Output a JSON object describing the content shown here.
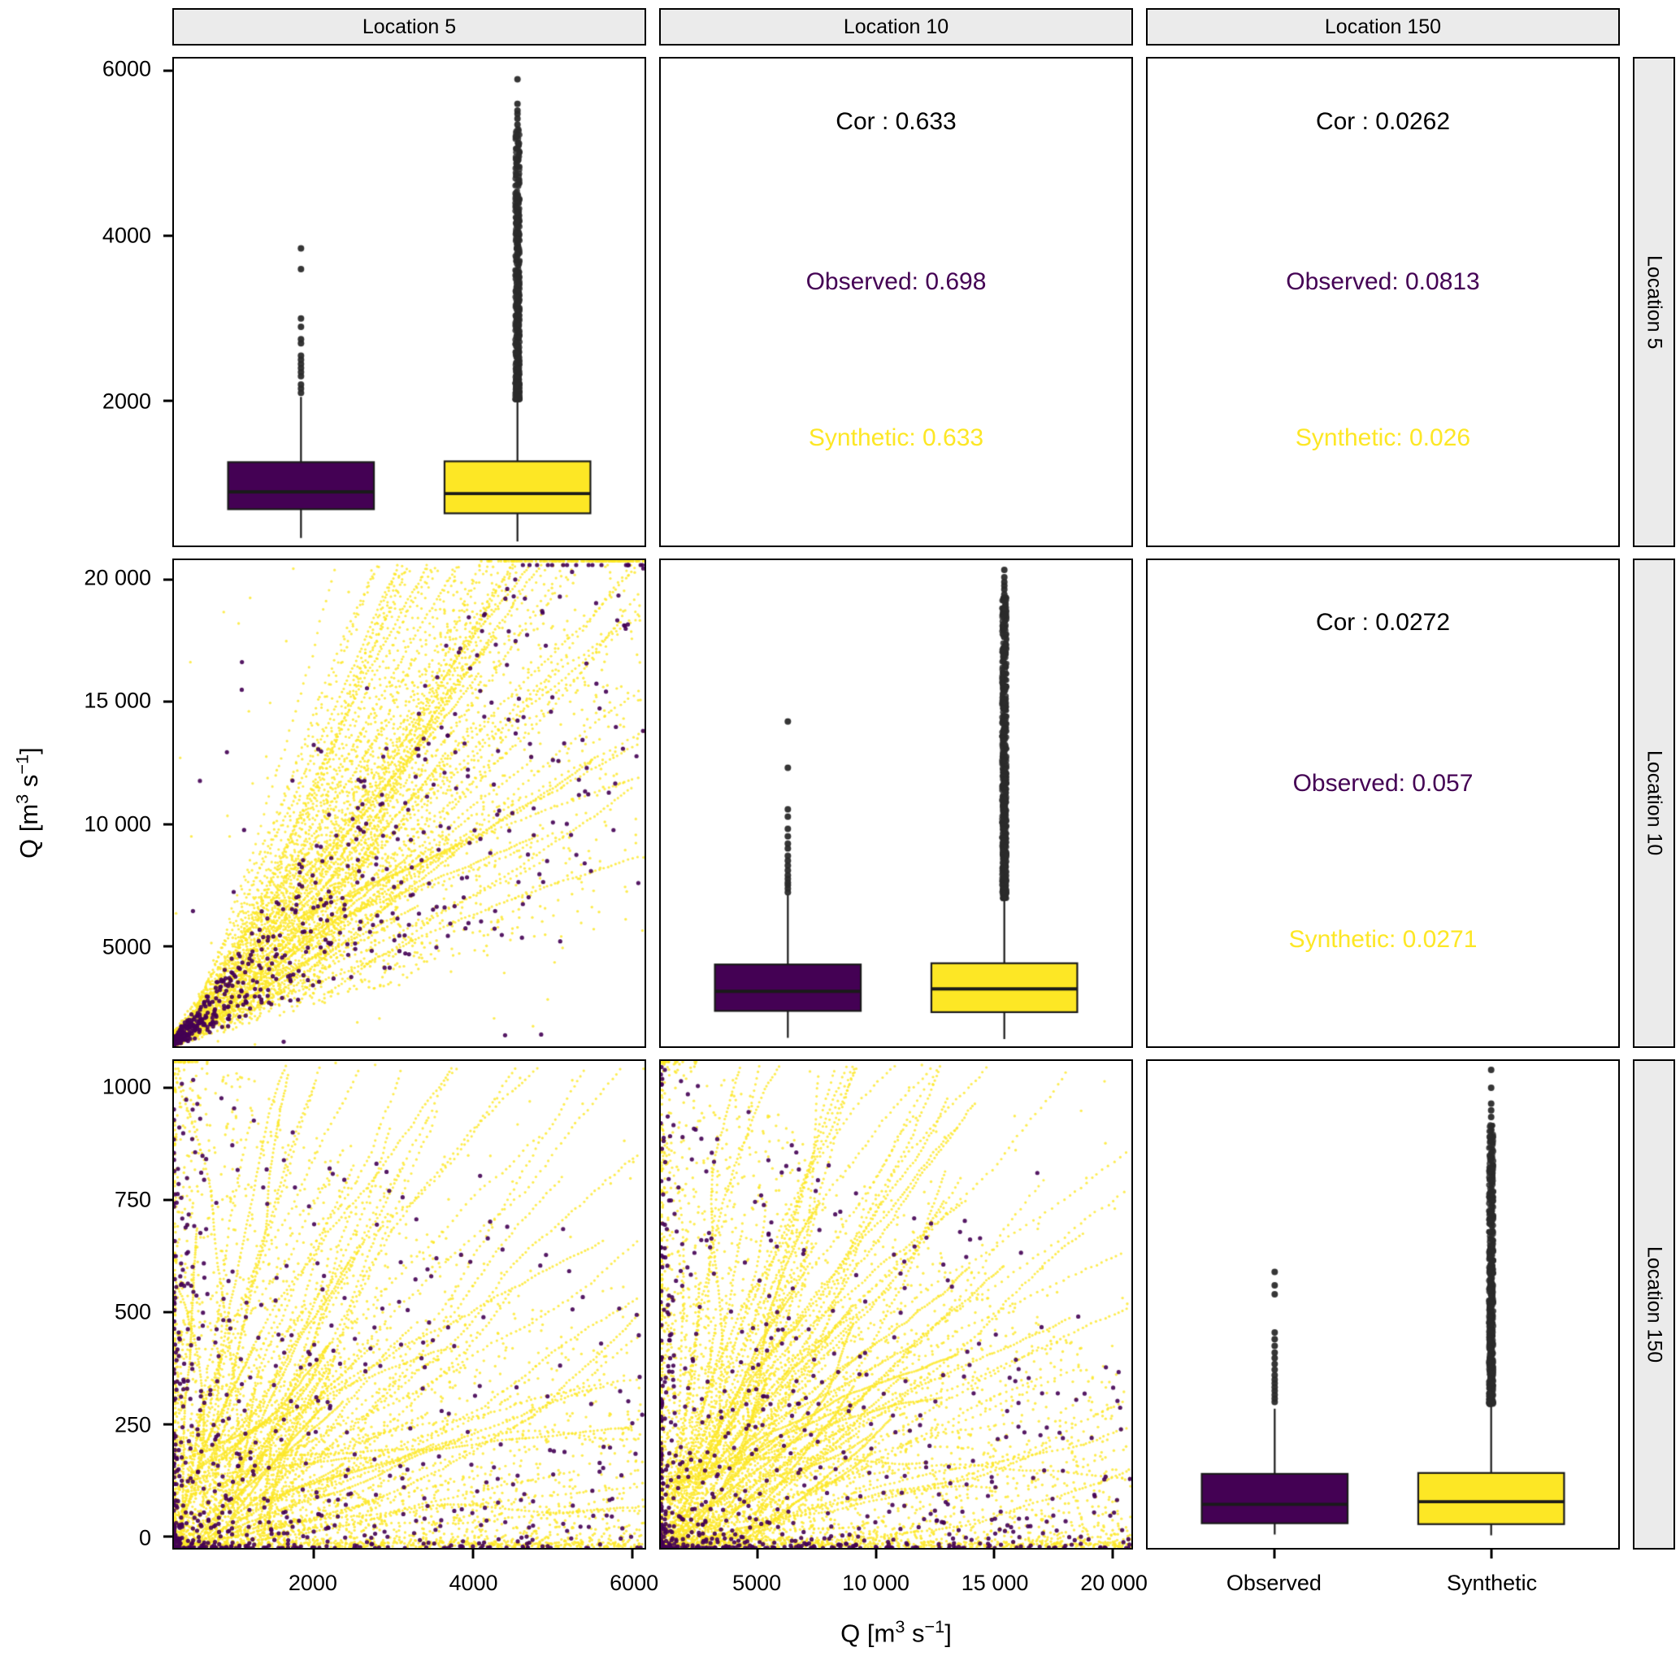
{
  "figure": {
    "colors": {
      "observed": "#440154",
      "synthetic": "#FDE725",
      "outlier": "#2B2B2B",
      "strip_bg": "#EBEBEB",
      "median_line": "#1A1A1A"
    },
    "col_strips": [
      "Location 5",
      "Location 10",
      "Location 150"
    ],
    "row_strips": [
      "Location 5",
      "Location 10",
      "Location 150"
    ],
    "x_title": {
      "p1": "Q [m",
      "s1": "3",
      "p2": " s",
      "s2": "−1",
      "p3": "]"
    },
    "y_title": {
      "p1": "Q [m",
      "s1": "3",
      "p2": " s",
      "s2": "−1",
      "p3": "]"
    }
  },
  "chart_data": {
    "type": "matrix",
    "description": "3x3 ggpairs-style matrix of streamflow Q at Locations 5, 10 and 150. Diagonal: boxplots of Observed (dark purple) vs Synthetic (yellow) flows. Upper triangle: correlation coefficients. Lower triangle: scatter clouds of synthetic (yellow, dense streaky cloud) and observed (purple, concentrated near origin) flow pairs.",
    "legend": {
      "Observed": "#440154",
      "Synthetic": "#FDE725"
    },
    "x_axes": [
      {
        "domain": [
          250,
          6150
        ],
        "ticks": [
          {
            "v": 2000,
            "label": "2000"
          },
          {
            "v": 4000,
            "label": "4000"
          },
          {
            "v": 6000,
            "label": "6000"
          }
        ]
      },
      {
        "domain": [
          900,
          20800
        ],
        "ticks": [
          {
            "v": 5000,
            "label": "5000"
          },
          {
            "v": 10000,
            "label": "10 000"
          },
          {
            "v": 15000,
            "label": "15 000"
          },
          {
            "v": 20000,
            "label": "20 000"
          }
        ]
      },
      {
        "categorical": true,
        "ticks": [
          {
            "pos": 0.27,
            "label": "Observed"
          },
          {
            "pos": 0.73,
            "label": "Synthetic"
          }
        ]
      }
    ],
    "y_axes": [
      {
        "domain": [
          250,
          6150
        ],
        "ticks": [
          {
            "v": 2000,
            "label": "2000"
          },
          {
            "v": 4000,
            "label": "4000"
          },
          {
            "v": 6000,
            "label": "6000"
          }
        ]
      },
      {
        "domain": [
          900,
          20800
        ],
        "ticks": [
          {
            "v": 5000,
            "label": "5000"
          },
          {
            "v": 10000,
            "label": "10 000"
          },
          {
            "v": 15000,
            "label": "15 000"
          },
          {
            "v": 20000,
            "label": "20 000"
          }
        ]
      },
      {
        "domain": [
          -25,
          1060
        ],
        "ticks": [
          {
            "v": 0,
            "label": "0"
          },
          {
            "v": 250,
            "label": "250"
          },
          {
            "v": 500,
            "label": "500"
          },
          {
            "v": 750,
            "label": "750"
          },
          {
            "v": 1000,
            "label": "1000"
          }
        ]
      }
    ],
    "panels": [
      {
        "row": 0,
        "col": 0,
        "type": "box",
        "seed": 7,
        "boxes": [
          {
            "name": "Observed",
            "color": "observed",
            "lower": 340,
            "q1": 690,
            "median": 900,
            "q3": 1260,
            "upper": 2050,
            "outliers": [
              2100,
              2150,
              2200,
              2300,
              2350,
              2400,
              2450,
              2500,
              2550,
              2700,
              2750,
              2900,
              3000,
              3600,
              3850
            ]
          },
          {
            "name": "Synthetic",
            "color": "synthetic",
            "lower": 300,
            "q1": 640,
            "median": 880,
            "q3": 1270,
            "upper": 2000,
            "outlier_column": {
              "from": 2020,
              "to": 5300,
              "n": 620,
              "exp": 1.6
            },
            "outliers": [
              5350,
              5420,
              5480,
              5520,
              5600,
              5900
            ]
          }
        ]
      },
      {
        "row": 0,
        "col": 1,
        "type": "cor",
        "cor_label": "Cor : 0.633",
        "observed_label": "Observed: 0.698",
        "synthetic_label": "Synthetic: 0.633"
      },
      {
        "row": 0,
        "col": 2,
        "type": "cor",
        "cor_label": "Cor : 0.0262",
        "observed_label": "Observed: 0.0813",
        "synthetic_label": "Synthetic: 0.026"
      },
      {
        "row": 1,
        "col": 0,
        "type": "scatter",
        "seed": 101,
        "corr": "pos",
        "yellow_n": 2700,
        "streaks": 85,
        "purple_n": 620,
        "summary": "Positively correlated cloud: synthetic (yellow) streaks fan diagonally from lower-left (x 300-6000, y 1000-20400); observed (purple) dense below x 2000, y 7000."
      },
      {
        "row": 1,
        "col": 1,
        "type": "box",
        "seed": 9,
        "boxes": [
          {
            "name": "Observed",
            "color": "observed",
            "lower": 1250,
            "q1": 2350,
            "median": 3150,
            "q3": 4250,
            "upper": 7100,
            "outliers": [
              7200,
              7350,
              7500,
              7600,
              7750,
              7900,
              8100,
              8300,
              8500,
              8700,
              9000,
              9200,
              9500,
              9800,
              10300,
              10600,
              12300,
              14200
            ]
          },
          {
            "name": "Synthetic",
            "color": "synthetic",
            "lower": 1200,
            "q1": 2300,
            "median": 3250,
            "q3": 4300,
            "upper": 6900,
            "outlier_column": {
              "from": 6950,
              "to": 19300,
              "n": 700,
              "exp": 1.4
            },
            "outliers": [
              19400,
              19600,
              19750,
              19900,
              20100,
              20400
            ]
          }
        ]
      },
      {
        "row": 1,
        "col": 2,
        "type": "cor",
        "cor_label": "Cor : 0.0272",
        "observed_label": "Observed: 0.057",
        "synthetic_label": "Synthetic: 0.0271"
      },
      {
        "row": 2,
        "col": 0,
        "type": "scatter",
        "seed": 202,
        "corr": "none",
        "yellow_n": 3000,
        "streaks": 80,
        "purple_n": 650,
        "summary": "Weakly correlated cloud concentrated near origin: x 300-6000, y 0-1000; yellow streaks fan from lower-left; purple dense below x 1500, y 350."
      },
      {
        "row": 2,
        "col": 1,
        "type": "scatter",
        "seed": 303,
        "corr": "none",
        "yellow_n": 3200,
        "streaks": 85,
        "purple_n": 700,
        "summary": "Weakly correlated cloud concentrated near origin: x 1000-20000, y 0-1000; yellow streaks fan from lower-left; purple dense below x 6000, y 350."
      },
      {
        "row": 2,
        "col": 2,
        "type": "box",
        "seed": 13,
        "boxes": [
          {
            "name": "Observed",
            "color": "observed",
            "lower": 5,
            "q1": 30,
            "median": 72,
            "q3": 140,
            "upper": 285,
            "outliers": [
              300,
              308,
              316,
              325,
              333,
              342,
              350,
              360,
              372,
              385,
              398,
              410,
              425,
              440,
              455,
              540,
              560,
              590
            ]
          },
          {
            "name": "Synthetic",
            "color": "synthetic",
            "lower": 3,
            "q1": 28,
            "median": 78,
            "q3": 142,
            "upper": 290,
            "outlier_column": {
              "from": 295,
              "to": 920,
              "n": 650,
              "exp": 1.5
            },
            "outliers": [
              935,
              950,
              965,
              1000,
              1040
            ]
          }
        ]
      }
    ]
  }
}
